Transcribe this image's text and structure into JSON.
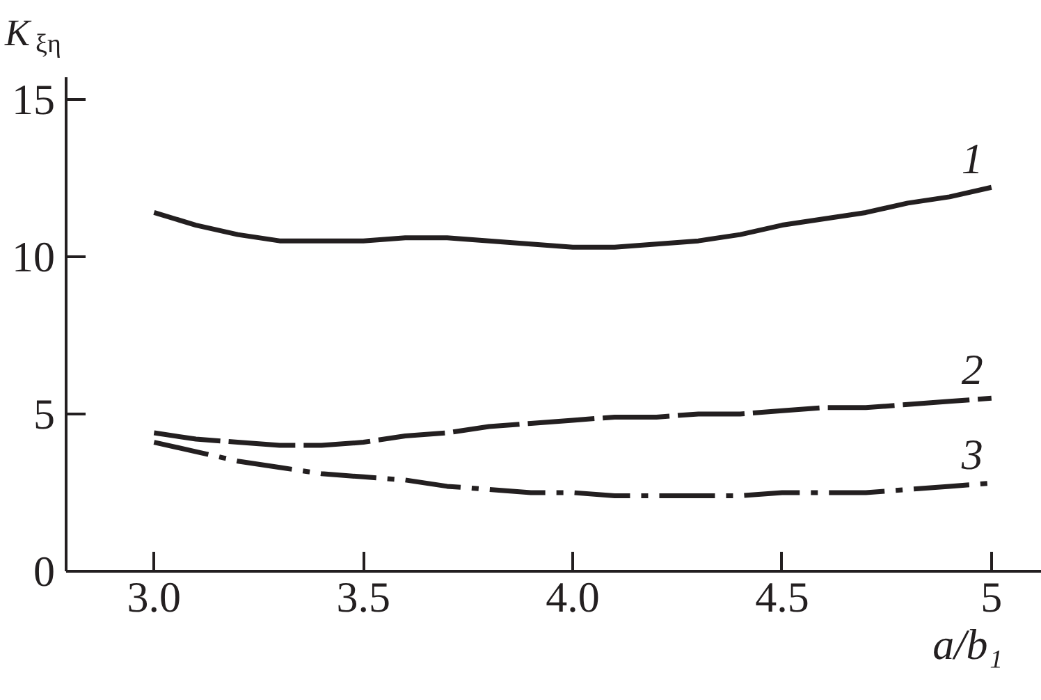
{
  "chart_data": {
    "type": "line",
    "xlabel": "a/b₁",
    "ylabel": "K$_{ξη}$",
    "xlim": [
      2.79,
      5.12
    ],
    "ylim": [
      0,
      15.7
    ],
    "xticks": [
      {
        "value": 3,
        "label": "3.0"
      },
      3.5,
      {
        "value": 4,
        "label": "4.0"
      },
      4.5,
      5
    ],
    "yticks": [
      0,
      5,
      10,
      15
    ],
    "grid": false,
    "x": [
      3.0,
      3.1,
      3.2,
      3.3,
      3.4,
      3.5,
      3.6,
      3.7,
      3.8,
      3.9,
      4.0,
      4.1,
      4.2,
      4.3,
      4.4,
      4.5,
      4.6,
      4.7,
      4.8,
      4.9,
      5.0
    ],
    "series": [
      {
        "name": "1",
        "color": "#231f20",
        "line_style": "solid",
        "values": [
          11.4,
          11.0,
          10.7,
          10.5,
          10.5,
          10.5,
          10.6,
          10.6,
          10.5,
          10.4,
          10.3,
          10.3,
          10.4,
          10.5,
          10.7,
          11.0,
          11.2,
          11.4,
          11.7,
          11.9,
          12.2
        ]
      },
      {
        "name": "2",
        "color": "#231f20",
        "line_style": "dashed",
        "values": [
          4.4,
          4.2,
          4.1,
          4.0,
          4.0,
          4.1,
          4.3,
          4.4,
          4.6,
          4.7,
          4.8,
          4.9,
          4.9,
          5.0,
          5.0,
          5.1,
          5.2,
          5.2,
          5.3,
          5.4,
          5.5
        ]
      },
      {
        "name": "3",
        "color": "#231f20",
        "line_style": "dashdot",
        "values": [
          4.1,
          3.8,
          3.5,
          3.3,
          3.1,
          3.0,
          2.9,
          2.7,
          2.6,
          2.5,
          2.5,
          2.4,
          2.4,
          2.4,
          2.4,
          2.5,
          2.5,
          2.5,
          2.6,
          2.7,
          2.8
        ]
      }
    ]
  }
}
